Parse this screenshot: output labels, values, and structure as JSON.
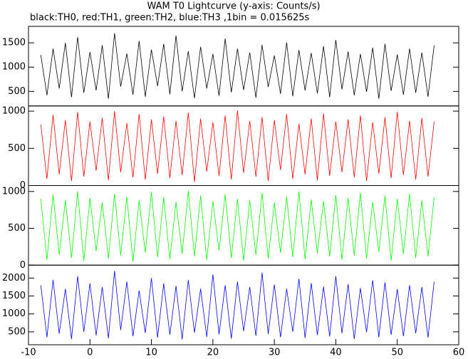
{
  "chart_data": [
    {
      "type": "line",
      "title": "WAM T0 Lightcurve (y-axis: Counts/s)",
      "subtitle": "black:TH0, red:TH1, green:TH2, blue:TH3 ,1bin = 0.015625s",
      "color": "#000000",
      "xlim": [
        -10,
        60
      ],
      "ylim": [
        200,
        1840
      ],
      "yticks": [
        500,
        1000,
        1500
      ],
      "x": [
        -8,
        -7,
        -6,
        -5,
        -4,
        -3,
        -2,
        -1,
        0,
        1,
        2,
        3,
        4,
        5,
        6,
        7,
        8,
        9,
        10,
        11,
        12,
        13,
        14,
        15,
        16,
        17,
        18,
        19,
        20,
        21,
        22,
        23,
        24,
        25,
        26,
        27,
        28,
        29,
        30,
        31,
        32,
        33,
        34,
        35,
        36,
        37,
        38,
        39,
        40,
        41,
        42,
        43,
        44,
        45,
        46,
        47,
        48,
        49,
        50,
        51,
        52,
        53,
        54,
        55,
        56
      ],
      "values": [
        1250,
        420,
        1380,
        560,
        1500,
        380,
        1620,
        470,
        1310,
        520,
        1450,
        350,
        1700,
        600,
        1280,
        430,
        1540,
        390,
        1360,
        610,
        1480,
        440,
        1650,
        500,
        1330,
        360,
        1420,
        560,
        1270,
        410,
        1590,
        480,
        1380,
        530,
        1300,
        370,
        1460,
        590,
        1240,
        450,
        1510,
        400,
        1350,
        520,
        1290,
        460,
        1430,
        380,
        1560,
        540,
        1320,
        420,
        1270,
        490,
        1400,
        350,
        1480,
        510,
        1260,
        430,
        1380,
        470,
        1300,
        390,
        1450
      ]
    },
    {
      "type": "line",
      "color": "#ff0000",
      "xlim": [
        -10,
        60
      ],
      "ylim": [
        0,
        1070
      ],
      "yticks": [
        0,
        500,
        1000
      ],
      "x": [
        -8,
        -7,
        -6,
        -5,
        -4,
        -3,
        -2,
        -1,
        0,
        1,
        2,
        3,
        4,
        5,
        6,
        7,
        8,
        9,
        10,
        11,
        12,
        13,
        14,
        15,
        16,
        17,
        18,
        19,
        20,
        21,
        22,
        23,
        24,
        25,
        26,
        27,
        28,
        29,
        30,
        31,
        32,
        33,
        34,
        35,
        36,
        37,
        38,
        39,
        40,
        41,
        42,
        43,
        44,
        45,
        46,
        47,
        48,
        49,
        50,
        51,
        52,
        53,
        54,
        55,
        56
      ],
      "values": [
        820,
        90,
        950,
        150,
        880,
        60,
        990,
        120,
        860,
        200,
        910,
        70,
        1000,
        180,
        840,
        110,
        960,
        80,
        890,
        160,
        930,
        100,
        870,
        140,
        980,
        50,
        900,
        190,
        850,
        130,
        940,
        80,
        1010,
        170,
        870,
        120,
        920,
        60,
        880,
        210,
        960,
        90,
        830,
        150,
        900,
        70,
        970,
        130,
        860,
        180,
        890,
        110,
        940,
        60,
        850,
        160,
        920,
        100,
        990,
        140,
        870,
        80,
        910,
        120,
        860
      ]
    },
    {
      "type": "line",
      "color": "#00ff00",
      "xlim": [
        -10,
        60
      ],
      "ylim": [
        0,
        1080
      ],
      "yticks": [
        0,
        500,
        1000
      ],
      "x": [
        -8,
        -7,
        -6,
        -5,
        -4,
        -3,
        -2,
        -1,
        0,
        1,
        2,
        3,
        4,
        5,
        6,
        7,
        8,
        9,
        10,
        11,
        12,
        13,
        14,
        15,
        16,
        17,
        18,
        19,
        20,
        21,
        22,
        23,
        24,
        25,
        26,
        27,
        28,
        29,
        30,
        31,
        32,
        33,
        34,
        35,
        36,
        37,
        38,
        39,
        40,
        41,
        42,
        43,
        44,
        45,
        46,
        47,
        48,
        49,
        50,
        51,
        52,
        53,
        54,
        55,
        56
      ],
      "values": [
        900,
        70,
        960,
        140,
        880,
        100,
        1000,
        60,
        910,
        190,
        850,
        90,
        970,
        130,
        930,
        50,
        880,
        170,
        990,
        110,
        920,
        80,
        860,
        150,
        1010,
        120,
        940,
        70,
        870,
        200,
        960,
        100,
        900,
        60,
        880,
        140,
        980,
        90,
        850,
        170,
        930,
        110,
        1000,
        80,
        890,
        160,
        870,
        120,
        950,
        70,
        910,
        130,
        980,
        90,
        860,
        180,
        940,
        60,
        900,
        150,
        970,
        100,
        880,
        120,
        920
      ]
    },
    {
      "type": "line",
      "color": "#0000ff",
      "xlim": [
        -10,
        60
      ],
      "ylim": [
        140,
        2360
      ],
      "yticks": [
        500,
        1000,
        1500,
        2000
      ],
      "xticks": [
        -10,
        0,
        10,
        20,
        30,
        40,
        50,
        60
      ],
      "x": [
        -8,
        -7,
        -6,
        -5,
        -4,
        -3,
        -2,
        -1,
        0,
        1,
        2,
        3,
        4,
        5,
        6,
        7,
        8,
        9,
        10,
        11,
        12,
        13,
        14,
        15,
        16,
        17,
        18,
        19,
        20,
        21,
        22,
        23,
        24,
        25,
        26,
        27,
        28,
        29,
        30,
        31,
        32,
        33,
        34,
        35,
        36,
        37,
        38,
        39,
        40,
        41,
        42,
        43,
        44,
        45,
        46,
        47,
        48,
        49,
        50,
        51,
        52,
        53,
        54,
        55,
        56
      ],
      "values": [
        1800,
        350,
        1950,
        450,
        1700,
        300,
        2050,
        500,
        1850,
        400,
        1750,
        320,
        2200,
        550,
        1900,
        380,
        1650,
        470,
        2000,
        340,
        1850,
        420,
        1780,
        290,
        1950,
        480,
        1700,
        360,
        2100,
        430,
        1800,
        310,
        1900,
        520,
        1750,
        390,
        2150,
        440,
        1820,
        350,
        1700,
        500,
        1980,
        330,
        1860,
        410,
        1760,
        370,
        2050,
        460,
        1830,
        300,
        1720,
        490,
        1940,
        350,
        1880,
        420,
        1690,
        380,
        1800,
        460,
        1750,
        340,
        1900
      ]
    }
  ]
}
